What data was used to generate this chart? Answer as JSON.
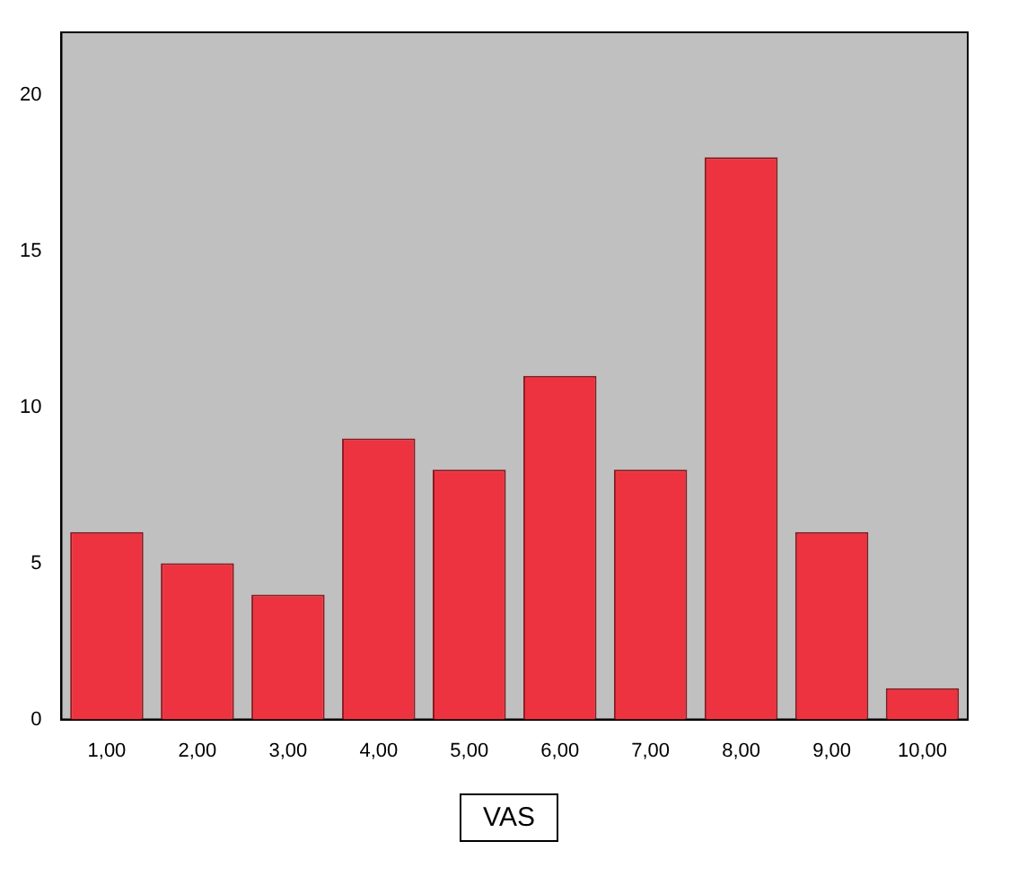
{
  "chart_data": {
    "type": "bar",
    "categories": [
      "1,00",
      "2,00",
      "3,00",
      "4,00",
      "5,00",
      "6,00",
      "7,00",
      "8,00",
      "9,00",
      "10,00"
    ],
    "values": [
      6,
      5,
      4,
      9,
      8,
      11,
      8,
      18,
      6,
      1
    ],
    "color": "#ee3340",
    "xlabel": "VAS",
    "ylim": [
      0,
      22
    ],
    "yticks": [
      0,
      5,
      10,
      15,
      20
    ],
    "grid": false,
    "legend": false
  }
}
